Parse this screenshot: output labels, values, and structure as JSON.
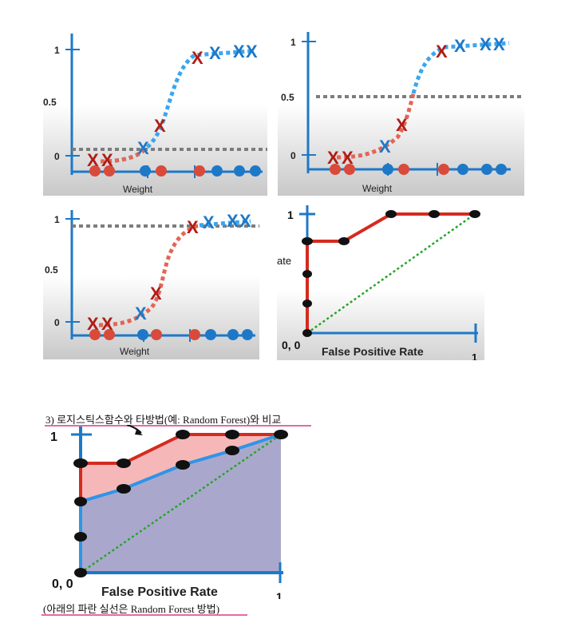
{
  "colors": {
    "blue": "#1e78c8",
    "lightblue": "#3aa6ef",
    "red": "#c83020",
    "darkred": "#b01c14",
    "gray": "#7d7d7d",
    "green": "#28a428",
    "pinkFill": "#f6b7b9",
    "purpleFill": "#a9a8cc",
    "underline": "#e46aa8"
  },
  "panel1": {
    "t1": "1",
    "t05": "0.5",
    "t0": "0",
    "xlabel": "Weight"
  },
  "panel2": {
    "t1": "1",
    "t05": "0.5",
    "t0": "0",
    "xlabel": "Weight"
  },
  "panel3": {
    "t1": "1",
    "t05": "0.5",
    "t0": "0",
    "xlabel": "Weight"
  },
  "panel4": {
    "t1": "1",
    "ylabel_frag": "ate",
    "origin": "0, 0",
    "xlabel": "False Positive Rate",
    "xtick": "1"
  },
  "compare": {
    "heading": "3) 로지스틱스함수와 타방법(예: Random Forest)와 비교",
    "t1": "1",
    "origin": "0, 0",
    "xlabel": "False Positive Rate",
    "xtick": "1",
    "note": "(아래의 파란 실선은 Random Forest 방법)"
  },
  "marker_x": "X"
}
